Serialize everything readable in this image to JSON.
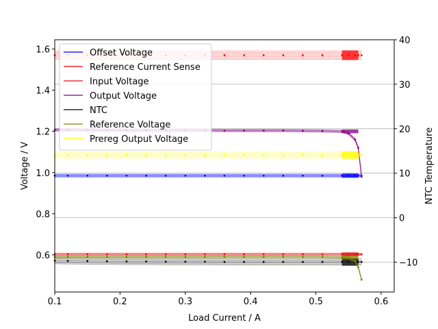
{
  "chart_data": {
    "type": "line",
    "title": "",
    "xlabel": "Load Current / A",
    "ylabel": "Voltage / V",
    "y2label": "NTC Temperature",
    "xlim": [
      0.1,
      0.62
    ],
    "ylim": [
      0.42,
      1.645
    ],
    "y2lim": [
      -16.7,
      40
    ],
    "xticks": [
      "0.1",
      "0.2",
      "0.3",
      "0.4",
      "0.5",
      "0.6"
    ],
    "yticks": [
      "0.6",
      "0.8",
      "1.0",
      "1.2",
      "1.4",
      "1.6"
    ],
    "y2ticks": [
      "−10",
      "0",
      "10",
      "20",
      "30",
      "40"
    ],
    "grid": "right-axis horizontal",
    "legend_position": "top-left",
    "x": [
      0.1,
      0.12,
      0.15,
      0.18,
      0.21,
      0.24,
      0.27,
      0.3,
      0.33,
      0.36,
      0.39,
      0.42,
      0.45,
      0.48,
      0.51,
      0.54,
      0.55,
      0.56,
      0.565,
      0.57
    ],
    "series": [
      {
        "name": "Offset Voltage",
        "color": "#0000ff",
        "axis": "left",
        "spread": 0.014,
        "values": [
          0.985,
          0.985,
          0.985,
          0.985,
          0.985,
          0.985,
          0.985,
          0.985,
          0.985,
          0.985,
          0.985,
          0.985,
          0.985,
          0.985,
          0.985,
          0.985,
          0.985,
          0.985,
          0.985,
          0.985
        ]
      },
      {
        "name": "Reference Current Sense",
        "color": "#ff0000",
        "axis": "left",
        "spread": 0.04,
        "values": [
          1.57,
          1.57,
          1.57,
          1.57,
          1.57,
          1.57,
          1.57,
          1.57,
          1.57,
          1.57,
          1.57,
          1.57,
          1.57,
          1.57,
          1.57,
          1.57,
          1.57,
          1.57,
          1.57,
          1.57
        ]
      },
      {
        "name": "Input Voltage",
        "color": "#e01010",
        "axis": "left",
        "spread": 0.012,
        "values": [
          0.603,
          0.603,
          0.603,
          0.603,
          0.603,
          0.603,
          0.603,
          0.603,
          0.603,
          0.603,
          0.603,
          0.603,
          0.603,
          0.603,
          0.603,
          0.603,
          0.603,
          0.603,
          0.603,
          0.603
        ]
      },
      {
        "name": "Output Voltage",
        "color": "#800080",
        "axis": "left",
        "spread": 0.012,
        "values": [
          1.207,
          1.207,
          1.206,
          1.206,
          1.205,
          1.205,
          1.205,
          1.205,
          1.205,
          1.204,
          1.204,
          1.204,
          1.204,
          1.203,
          1.202,
          1.2,
          1.19,
          1.16,
          1.12,
          0.98
        ]
      },
      {
        "name": "NTC",
        "color": "#000000",
        "axis": "left",
        "spread": 0.03,
        "values": [
          0.572,
          0.571,
          0.57,
          0.569,
          0.568,
          0.568,
          0.567,
          0.567,
          0.567,
          0.566,
          0.566,
          0.566,
          0.566,
          0.566,
          0.566,
          0.566,
          0.566,
          0.566,
          0.566,
          0.566
        ]
      },
      {
        "name": "Reference Voltage",
        "color": "#808000",
        "axis": "left",
        "spread": 0.01,
        "values": [
          0.59,
          0.59,
          0.59,
          0.59,
          0.59,
          0.59,
          0.59,
          0.59,
          0.59,
          0.59,
          0.59,
          0.59,
          0.59,
          0.59,
          0.59,
          0.588,
          0.585,
          0.57,
          0.54,
          0.48
        ]
      },
      {
        "name": "Prereg Output Voltage",
        "color": "#ffff00",
        "axis": "left",
        "spread": 0.03,
        "values": [
          1.085,
          1.085,
          1.085,
          1.085,
          1.085,
          1.085,
          1.085,
          1.085,
          1.085,
          1.085,
          1.085,
          1.085,
          1.085,
          1.085,
          1.085,
          1.085,
          1.085,
          1.085,
          1.085,
          1.085
        ]
      }
    ]
  }
}
